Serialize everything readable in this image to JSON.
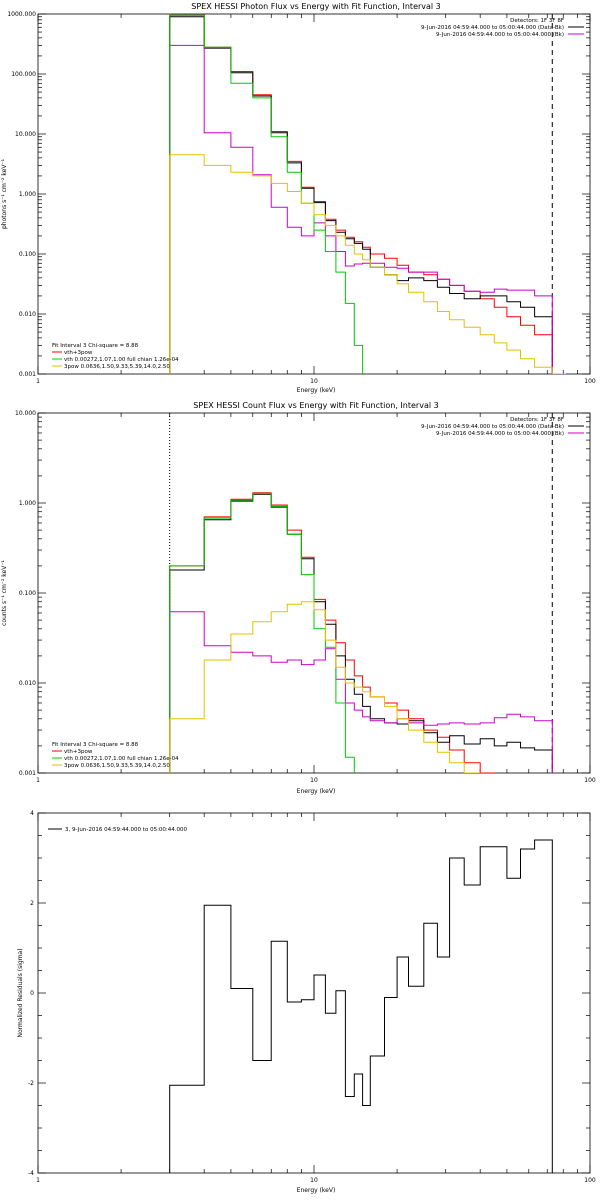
{
  "chart_data": [
    {
      "type": "line",
      "title": "SPEX HESSI Photon Flux vs Energy with Fit Function, Interval 3",
      "xlabel": "Energy (keV)",
      "ylabel": "photons s⁻¹ cm⁻² keV⁻¹",
      "xscale": "log",
      "yscale": "log",
      "xlim": [
        1,
        100
      ],
      "ylim": [
        0.001,
        1000
      ],
      "xtick_labels": [
        "1",
        "10",
        "100"
      ],
      "ytick_labels": [
        "0.001",
        "0.010",
        "0.100",
        "1.000",
        "10.000",
        "100.000",
        "1000.000"
      ],
      "legend_top_right": [
        {
          "text": "Detectors: 1F 3F 8F",
          "color": "#000000"
        },
        {
          "text": "9-Jun-2016 04:59:44.000 to 05:00:44.000 (Data-Bk)",
          "color": "#000000"
        },
        {
          "text": "9-Jun-2016 04:59:44.000 to 05:00:44.000 (Bk)",
          "color": "#cc00cc"
        }
      ],
      "legend_bottom_left": [
        {
          "text": "Fit Interval 3   Chi-square = 8.88",
          "color": "#000000"
        },
        {
          "text": "vth+3pow",
          "color": "#ff0000"
        },
        {
          "text": "vth 0.00272,1.07,1.00  full chian 1.26e-04",
          "color": "#00cc00"
        },
        {
          "text": "3pow 0.0636,1.50,9.33,5.39,14.0,2.50",
          "color": "#e6c000"
        }
      ],
      "vlines": [
        {
          "x": 3.0,
          "style": "dotted",
          "color": "#ff8800"
        },
        {
          "x": 73,
          "style": "dashed",
          "color": "#000000"
        }
      ],
      "edges": [
        3.0,
        3.5,
        4.0,
        5.0,
        6.0,
        7.0,
        8.0,
        9.0,
        10.0,
        11.0,
        12.0,
        13.0,
        14.0,
        15.0,
        16.0,
        18.0,
        20.0,
        22.0,
        25.0,
        28.0,
        31.0,
        35.0,
        40.0,
        45.0,
        50.0,
        56.0,
        63.0,
        73.0,
        82.0
      ],
      "series": [
        {
          "name": "vth+3pow",
          "color": "#ff0000",
          "values": [
            950,
            950,
            280,
            110,
            45,
            11,
            3.5,
            1.3,
            0.75,
            0.38,
            0.25,
            0.19,
            0.16,
            0.13,
            0.1,
            0.085,
            0.065,
            0.05,
            0.045,
            0.038,
            0.03,
            0.024,
            0.018,
            0.013,
            0.009,
            0.0065,
            0.0045,
            null
          ]
        },
        {
          "name": "Data-Bk",
          "color": "#000000",
          "values": [
            900,
            900,
            270,
            105,
            43,
            10.5,
            3.3,
            1.25,
            0.72,
            0.36,
            0.23,
            0.18,
            0.15,
            0.12,
            0.06,
            0.045,
            0.036,
            0.04,
            0.036,
            0.028,
            0.022,
            0.018,
            0.02,
            0.02,
            0.016,
            0.013,
            0.009,
            null
          ]
        },
        {
          "name": "Bk",
          "color": "#cc00cc",
          "values": [
            300,
            300,
            10.5,
            6,
            2.1,
            0.6,
            0.28,
            0.2,
            0.33,
            0.2,
            0.11,
            0.063,
            0.068,
            0.07,
            0.07,
            0.06,
            0.058,
            0.05,
            0.05,
            0.038,
            0.03,
            0.024,
            0.023,
            0.026,
            0.025,
            0.025,
            0.02,
            null
          ]
        },
        {
          "name": "vth",
          "color": "#00cc00",
          "values": [
            950,
            950,
            280,
            70,
            40,
            9,
            2.3,
            0.7,
            0.25,
            0.11,
            0.05,
            0.015,
            0.003,
            0.0009,
            null,
            null,
            null,
            null,
            null,
            null,
            null,
            null,
            null,
            null,
            null,
            null,
            null,
            null
          ]
        },
        {
          "name": "3pow",
          "color": "#e6c000",
          "values": [
            4.5,
            4.5,
            3.0,
            2.3,
            2.0,
            1.5,
            1.1,
            0.7,
            0.45,
            0.3,
            0.2,
            0.14,
            0.1,
            0.08,
            0.06,
            0.045,
            0.032,
            0.023,
            0.016,
            0.011,
            0.008,
            0.006,
            0.0045,
            0.0033,
            0.0025,
            0.0018,
            0.0013,
            0.001
          ]
        }
      ]
    },
    {
      "type": "line",
      "title": "SPEX HESSI Count Flux vs Energy with Fit Function, Interval 3",
      "xlabel": "Energy (keV)",
      "ylabel": "counts s⁻¹ cm⁻² keV⁻¹",
      "xscale": "log",
      "yscale": "log",
      "xlim": [
        1,
        100
      ],
      "ylim": [
        0.001,
        10
      ],
      "xtick_labels": [
        "1",
        "10",
        "100"
      ],
      "ytick_labels": [
        "0.001",
        "0.010",
        "0.100",
        "1.000",
        "10.000"
      ],
      "legend_top_right": [
        {
          "text": "Detectors: 1F 3F 8F",
          "color": "#000000"
        },
        {
          "text": "9-Jun-2016 04:59:44.000 to 05:00:44.000 (Data-Bk)",
          "color": "#000000"
        },
        {
          "text": "9-Jun-2016 04:59:44.000 to 05:00:44.000 (Bk)",
          "color": "#cc00cc"
        }
      ],
      "legend_bottom_left": [
        {
          "text": "Fit Interval 3   Chi-square = 8.88",
          "color": "#000000"
        },
        {
          "text": "vth+3pow",
          "color": "#ff0000"
        },
        {
          "text": "vth 0.00272,1.07,1.00  full chian 1.26e-04",
          "color": "#00cc00"
        },
        {
          "text": "3pow 0.0636,1.50,9.33,5.39,14.0,2.50",
          "color": "#e6c000"
        }
      ],
      "vlines": [
        {
          "x": 3.0,
          "style": "dotted",
          "color": "#000000"
        },
        {
          "x": 73,
          "style": "dashed",
          "color": "#000000"
        }
      ],
      "edges": [
        3.0,
        3.5,
        4.0,
        5.0,
        6.0,
        7.0,
        8.0,
        9.0,
        10.0,
        11.0,
        12.0,
        13.0,
        14.0,
        15.0,
        16.0,
        18.0,
        20.0,
        22.0,
        25.0,
        28.0,
        31.0,
        35.0,
        40.0,
        45.0,
        50.0,
        56.0,
        63.0,
        73.0
      ],
      "series": [
        {
          "name": "vth+3pow",
          "color": "#ff0000",
          "values": [
            0.2,
            0.2,
            0.7,
            1.1,
            1.3,
            0.95,
            0.5,
            0.25,
            0.085,
            0.05,
            0.028,
            0.018,
            0.012,
            0.009,
            0.007,
            0.006,
            0.005,
            0.004,
            0.003,
            0.0025,
            0.0018,
            0.0013,
            0.001,
            null,
            null,
            null,
            null
          ]
        },
        {
          "name": "Data-Bk",
          "color": "#000000",
          "values": [
            0.18,
            0.18,
            0.65,
            1.05,
            1.25,
            0.9,
            0.45,
            0.24,
            0.08,
            0.045,
            0.02,
            0.011,
            0.0075,
            0.0055,
            0.004,
            0.0036,
            0.0035,
            0.0038,
            0.0028,
            0.0022,
            0.0026,
            0.0021,
            0.0024,
            0.002,
            0.0022,
            0.0019,
            0.0018
          ]
        },
        {
          "name": "Bk",
          "color": "#cc00cc",
          "values": [
            0.062,
            0.062,
            0.026,
            0.022,
            0.02,
            0.017,
            0.018,
            0.016,
            0.018,
            0.024,
            0.011,
            0.006,
            0.005,
            0.0042,
            0.0038,
            0.0036,
            0.004,
            0.0036,
            0.0034,
            0.0035,
            0.0036,
            0.0035,
            0.0036,
            0.0041,
            0.0045,
            0.0042,
            0.0038
          ]
        },
        {
          "name": "vth",
          "color": "#00cc00",
          "values": [
            0.2,
            0.2,
            0.68,
            1.08,
            1.28,
            0.92,
            0.45,
            0.16,
            0.04,
            0.025,
            0.006,
            0.0015,
            0.0009,
            null,
            null,
            null,
            null,
            null,
            null,
            null,
            null,
            null,
            null,
            null,
            null,
            null,
            null
          ]
        },
        {
          "name": "3pow",
          "color": "#e6c000",
          "values": [
            0.004,
            0.004,
            0.018,
            0.035,
            0.048,
            0.062,
            0.075,
            0.08,
            0.065,
            0.03,
            0.015,
            0.01,
            0.009,
            0.008,
            0.007,
            0.0055,
            0.004,
            0.003,
            0.0022,
            0.0017,
            0.0013,
            0.001,
            null,
            null,
            null,
            null,
            null
          ]
        }
      ]
    },
    {
      "type": "line",
      "title": "",
      "xlabel": "Energy (keV)",
      "ylabel": "Normalized Residuals (sigma)",
      "xscale": "log",
      "yscale": "linear",
      "xlim": [
        1,
        100
      ],
      "ylim": [
        -4,
        4
      ],
      "xtick_labels": [
        "1",
        "10",
        "100"
      ],
      "ytick_labels": [
        "-4",
        "-2",
        "0",
        "2",
        "4"
      ],
      "legend_top_left": [
        {
          "text": "3,  9-Jun-2016 04:59:44.000 to 05:00:44.000",
          "color": "#000000"
        }
      ],
      "edges": [
        3.0,
        4.0,
        5.0,
        6.0,
        7.0,
        8.0,
        9.0,
        10.0,
        11.0,
        12.0,
        13.0,
        14.0,
        15.0,
        16.0,
        18.0,
        20.0,
        22.0,
        25.0,
        28.0,
        31.0,
        35.0,
        40.0,
        45.0,
        50.0,
        56.0,
        63.0,
        73.0
      ],
      "series": [
        {
          "name": "residuals",
          "color": "#000000",
          "values": [
            -2.05,
            1.95,
            0.1,
            -1.5,
            1.15,
            -0.2,
            -0.15,
            0.4,
            -0.45,
            0.05,
            -2.3,
            -1.8,
            -2.5,
            -1.4,
            -0.1,
            0.8,
            0.15,
            1.55,
            0.8,
            3.0,
            2.4,
            3.25,
            3.25,
            2.55,
            3.2,
            3.4
          ]
        }
      ]
    }
  ]
}
